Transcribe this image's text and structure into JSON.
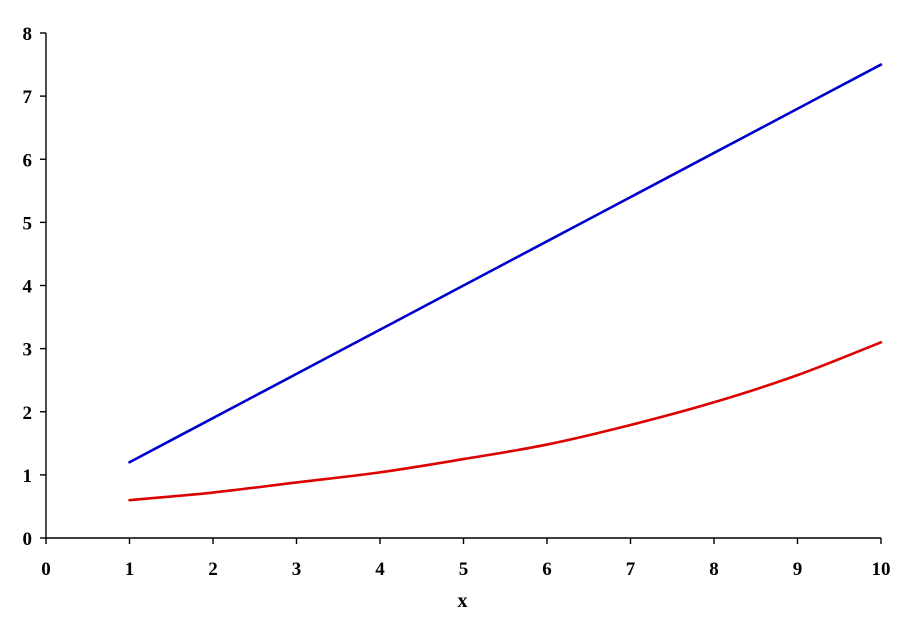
{
  "chart_data": {
    "type": "line",
    "title": "",
    "xlabel": "x",
    "ylabel": "",
    "xlim": [
      0,
      10
    ],
    "ylim": [
      0,
      8
    ],
    "x_ticks": [
      0,
      1,
      2,
      3,
      4,
      5,
      6,
      7,
      8,
      9,
      10
    ],
    "y_ticks": [
      0,
      1,
      2,
      3,
      4,
      5,
      6,
      7,
      8
    ],
    "grid": false,
    "legend": "none",
    "x": [
      1,
      2,
      3,
      4,
      5,
      6,
      7,
      8,
      9,
      10
    ],
    "series": [
      {
        "color": "#0000cc",
        "values": [
          1.2,
          1.9,
          2.6,
          3.3,
          4.0,
          4.7,
          5.4,
          6.1,
          6.8,
          7.5
        ]
      },
      {
        "color": "#dd0000",
        "values": [
          0.6,
          0.72,
          0.88,
          1.04,
          1.25,
          1.48,
          1.79,
          2.15,
          2.58,
          3.1
        ]
      }
    ]
  }
}
